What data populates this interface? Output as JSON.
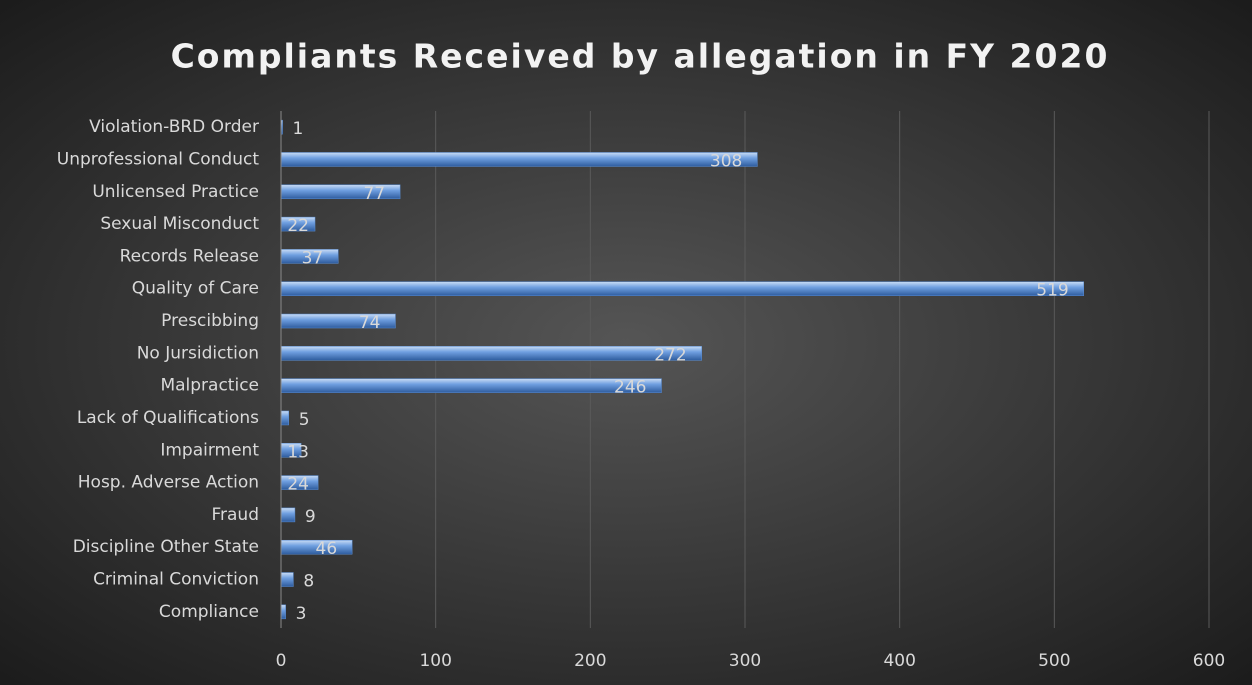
{
  "chart_data": {
    "type": "bar",
    "orientation": "horizontal",
    "title": "Compliants Received by allegation in FY 2020",
    "categories": [
      "Violation-BRD Order",
      "Unprofessional Conduct",
      "Unlicensed Practice",
      "Sexual Misconduct",
      "Records Release",
      "Quality of Care",
      "Prescibbing",
      "No Jursidiction",
      "Malpractice",
      "Lack of Qualifications",
      "Impairment",
      "Hosp. Adverse Action",
      "Fraud",
      "Discipline Other State",
      "Criminal Conviction",
      "Compliance"
    ],
    "values": [
      1,
      308,
      77,
      22,
      37,
      519,
      74,
      272,
      246,
      5,
      13,
      24,
      9,
      46,
      8,
      3
    ],
    "color": "#5b8fd6",
    "xlim": [
      0,
      600
    ],
    "xticks": [
      0,
      100,
      200,
      300,
      400,
      500,
      600
    ],
    "grid": true
  }
}
